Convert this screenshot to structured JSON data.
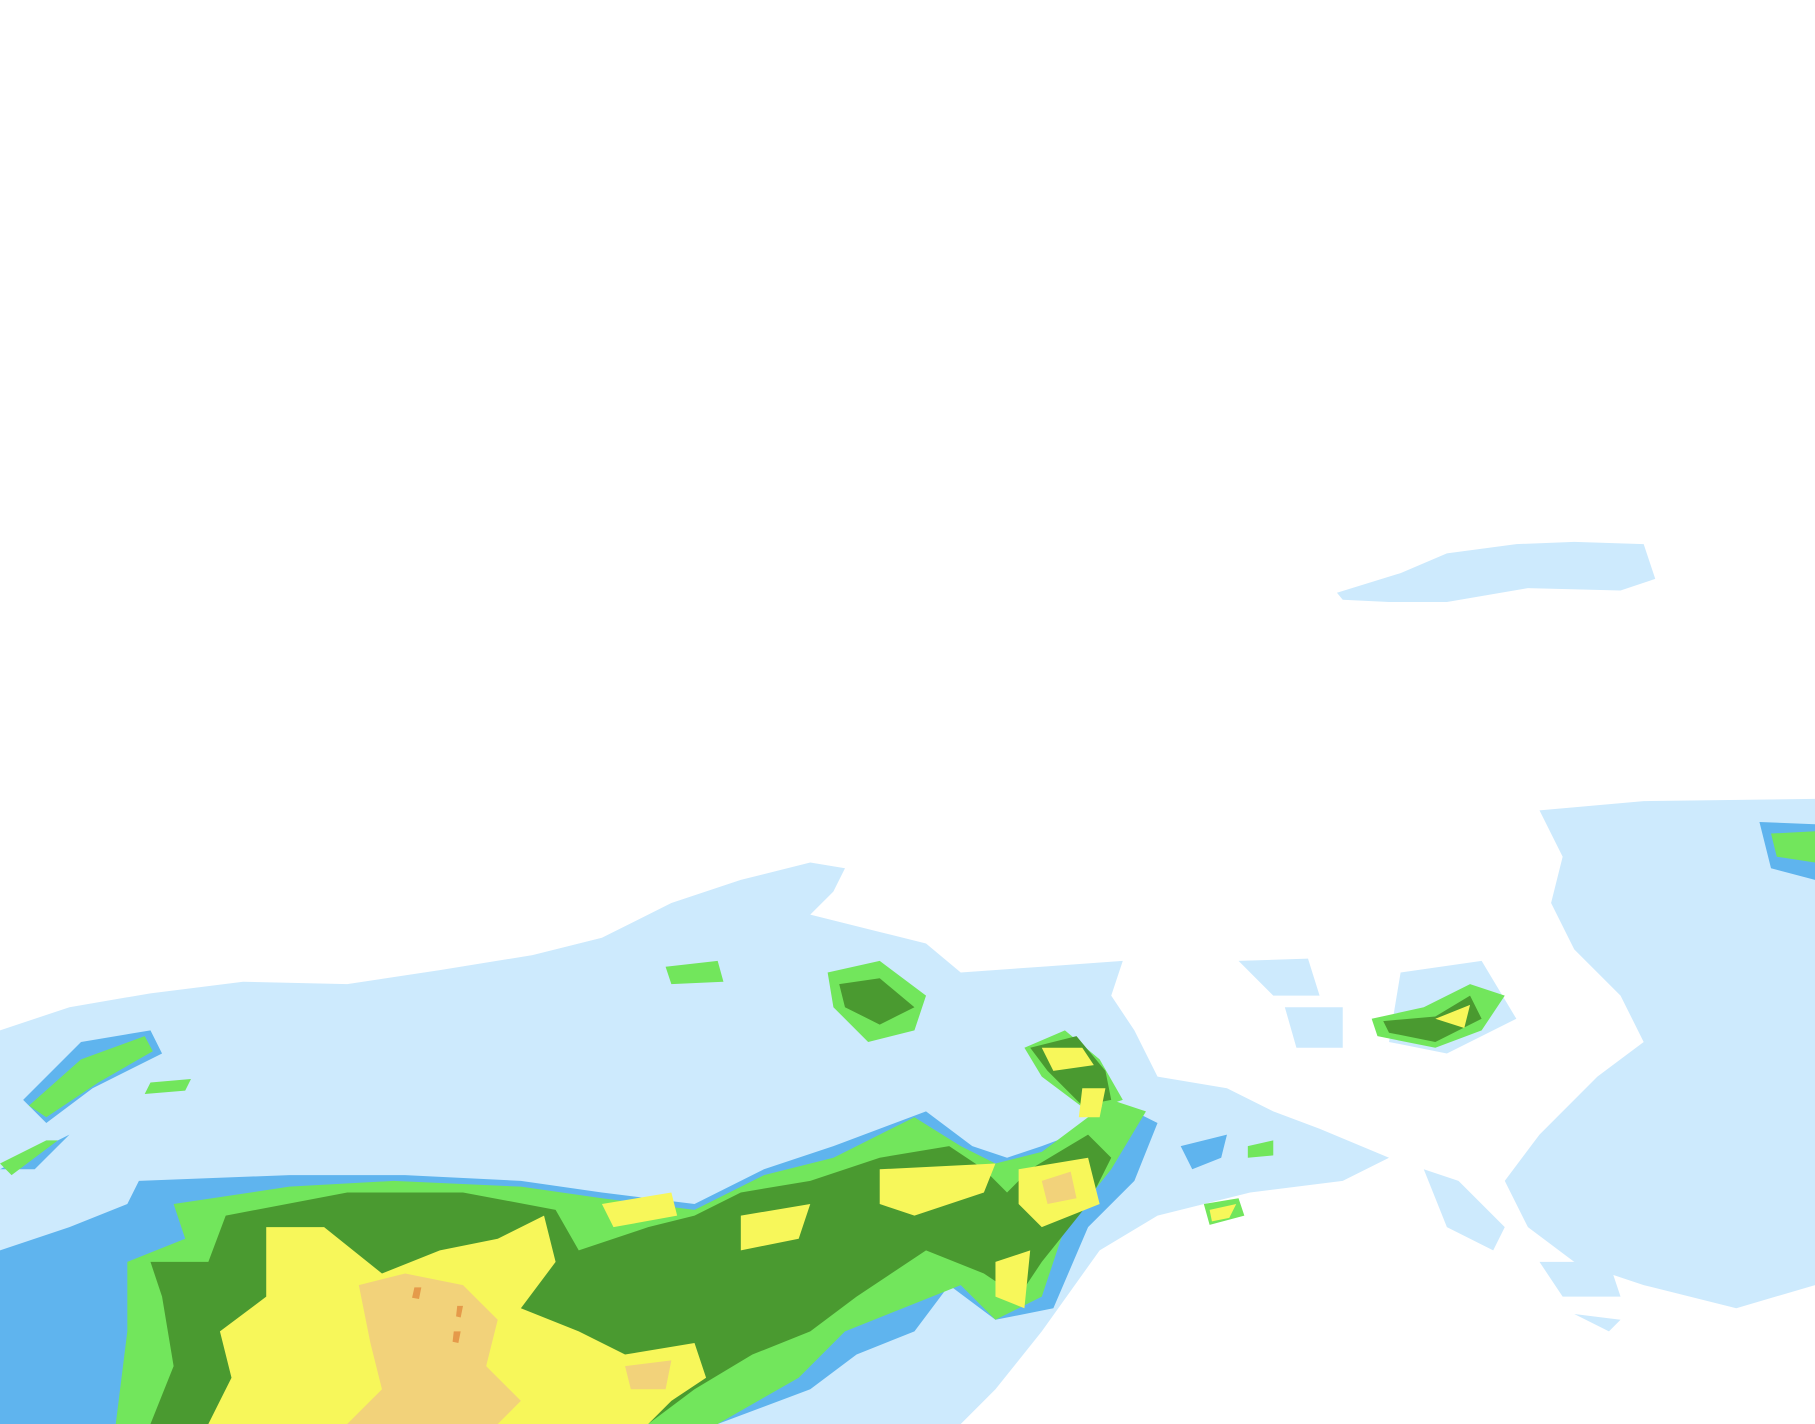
{
  "map": {
    "background_color": "#ffffff",
    "precipitation_colors": {
      "very_light": "#cdeafd",
      "light": "#5fb4ee",
      "moderate_light": "#72e65c",
      "moderate": "#4a9a30",
      "heavy": "#f7f75a",
      "very_heavy": "#f2d27a",
      "intense": "#e59a4a"
    }
  }
}
